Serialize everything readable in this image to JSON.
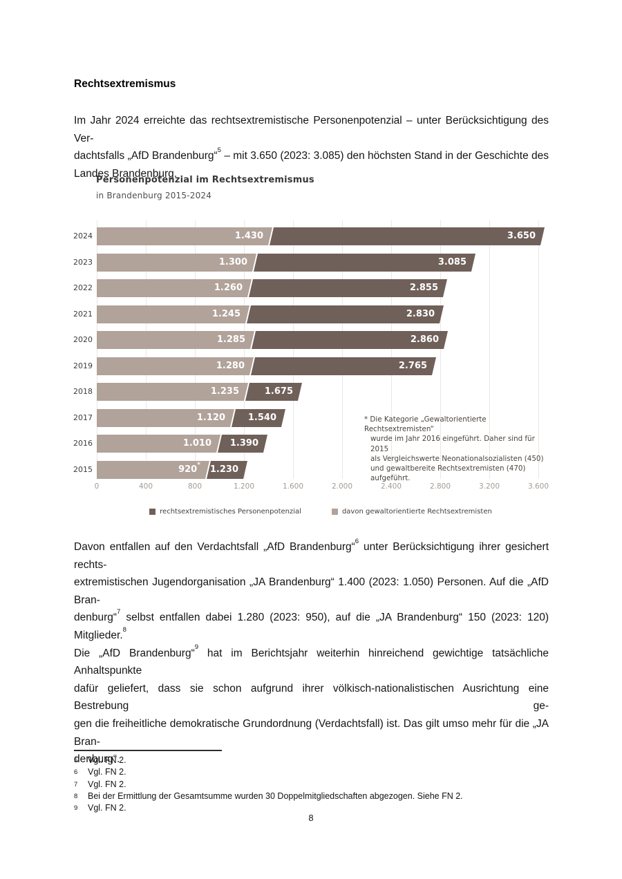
{
  "heading": "Rechtsextremismus",
  "para1_lines": [
    "Im Jahr 2024 erreichte das rechtsextremistische Personenpotenzial – unter Berücksichtigung des Ver-",
    "dachtsfalls „AfD Brandenburg“^5^ – mit 3.650 (2023: 3.085) den höchsten Stand in der Geschichte des",
    "Landes Brandenburg."
  ],
  "chart_data": {
    "type": "bar",
    "orientation": "horizontal",
    "title": "Personenpotenzial im Rechtsextremismus",
    "subtitle": "in Brandenburg 2015-2024",
    "categories": [
      "2024",
      "2023",
      "2022",
      "2021",
      "2020",
      "2019",
      "2018",
      "2017",
      "2016",
      "2015"
    ],
    "series": [
      {
        "name": "rechtsextremistisches Personenpotenzial",
        "color": "#70605a",
        "values": [
          3650,
          3085,
          2855,
          2830,
          2860,
          2765,
          1675,
          1540,
          1390,
          1230
        ],
        "labels": [
          "3.650",
          "3.085",
          "2.855",
          "2.830",
          "2.860",
          "2.765",
          "1.675",
          "1.540",
          "1.390",
          "1.230"
        ]
      },
      {
        "name": "davon gewaltorientierte Rechtsextremisten",
        "color": "#b1a29a",
        "values": [
          1430,
          1300,
          1260,
          1245,
          1285,
          1280,
          1235,
          1120,
          1010,
          920
        ],
        "labels": [
          "1.430",
          "1.300",
          "1.260",
          "1.245",
          "1.285",
          "1.280",
          "1.235",
          "1.120",
          "1.010",
          "920*"
        ]
      }
    ],
    "xlim": [
      0,
      3600
    ],
    "tick_step": 400,
    "tick_labels": [
      "0",
      "400",
      "800",
      "1.200",
      "1.600",
      "2.000",
      "2.400",
      "2.800",
      "3.200",
      "3.600"
    ],
    "grid": "vertical",
    "legend_position": "bottom",
    "note_lines": [
      "* Die Kategorie „Gewaltorientierte Rechtsextremisten“",
      "wurde im Jahr 2016 eingeführt. Daher sind für 2015",
      "als Vergleichswerte Neonationalsozialisten (450)",
      "und gewaltbereite Rechtsextremisten (470) aufgeführt."
    ]
  },
  "para2_lines": [
    "Davon entfallen auf den Verdachtsfall „AfD Brandenburg“^6^ unter Berücksichtigung ihrer gesichert rechts-",
    "extremistischen Jugendorganisation „JA Brandenburg“ 1.400 (2023: 1.050) Personen. Auf die „AfD Bran-",
    "denburg“^7^ selbst entfallen dabei 1.280 (2023: 950), auf die „JA Brandenburg“ 150 (2023: 120) Mitglieder.^8^",
    "Die „AfD Brandenburg“^9^ hat im Berichtsjahr weiterhin hinreichend gewichtige tatsächliche Anhaltspunkte",
    "dafür geliefert, dass sie schon aufgrund ihrer völkisch-nationalistischen Ausrichtung eine Bestrebung ge-",
    "gen die freiheitliche demokratische Grundordnung (Verdachtsfall) ist. Das gilt umso mehr für die „JA Bran-",
    "denburg“."
  ],
  "footnotes": [
    {
      "num": "5",
      "text": "Vgl. FN 2."
    },
    {
      "num": "6",
      "text": "Vgl. FN 2."
    },
    {
      "num": "7",
      "text": "Vgl. FN 2."
    },
    {
      "num": "8",
      "text": "Bei der Ermittlung der Gesamtsumme wurden 30 Doppelmitgliedschaften abgezogen. Siehe FN 2."
    },
    {
      "num": "9",
      "text": "Vgl. FN 2."
    }
  ],
  "page_number": "8"
}
